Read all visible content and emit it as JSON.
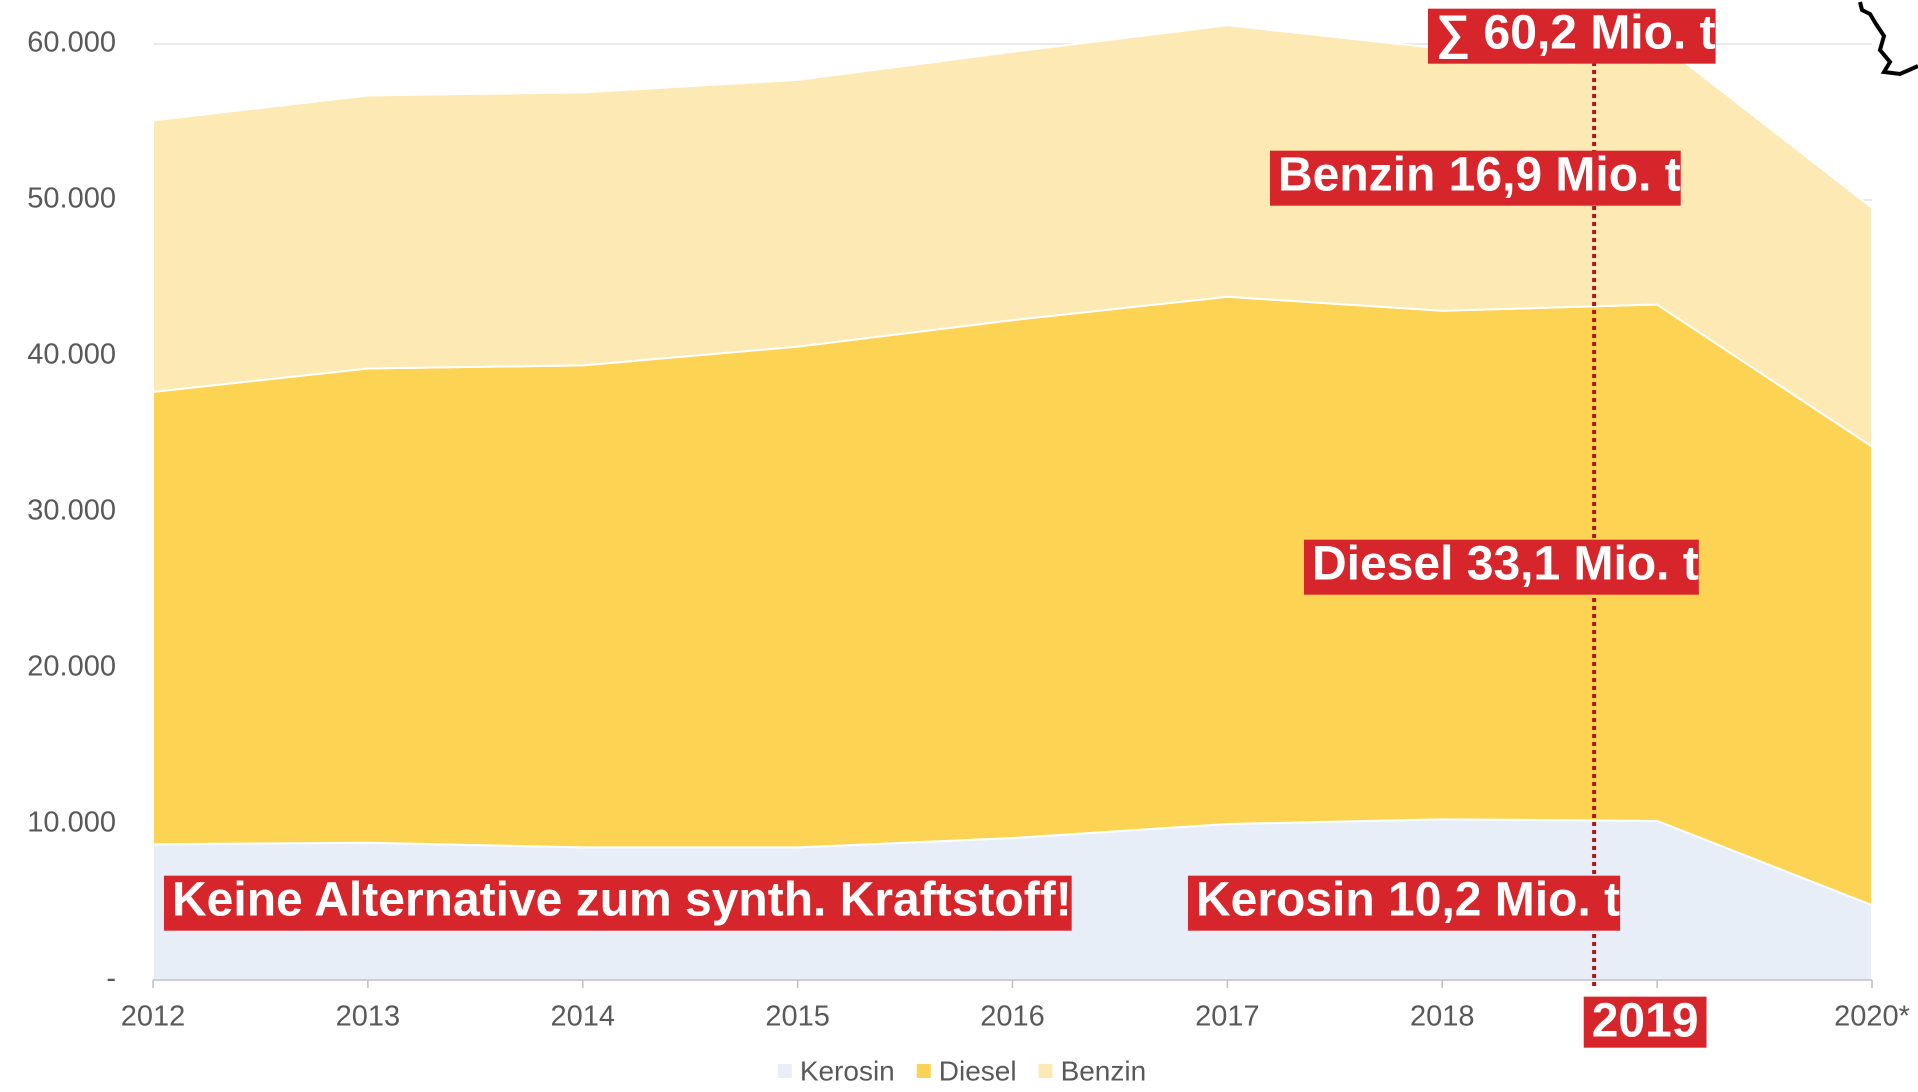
{
  "chart_data": {
    "type": "stacked-area",
    "categories": [
      "2012",
      "2013",
      "2014",
      "2015",
      "2016",
      "2017",
      "2018",
      "2019",
      "2020*"
    ],
    "series": [
      {
        "name": "Kerosin",
        "color": "#e8eef8",
        "values": [
          8700,
          8800,
          8500,
          8500,
          9100,
          10000,
          10300,
          10200,
          4800
        ]
      },
      {
        "name": "Diesel",
        "color": "#fcd353",
        "values": [
          29000,
          30400,
          30900,
          32100,
          33200,
          33800,
          32600,
          33100,
          29400
        ]
      },
      {
        "name": "Benzin",
        "color": "#fde9b3",
        "values": [
          17400,
          17500,
          17500,
          17100,
          17200,
          17400,
          16800,
          16900,
          15300
        ]
      }
    ],
    "ylim": [
      0,
      60000
    ],
    "yticks": [
      {
        "value": 0,
        "label": "-"
      },
      {
        "value": 10000,
        "label": "10.000"
      },
      {
        "value": 20000,
        "label": "20.000"
      },
      {
        "value": 30000,
        "label": "30.000"
      },
      {
        "value": 40000,
        "label": "40.000"
      },
      {
        "value": 50000,
        "label": "50.000"
      },
      {
        "value": 60000,
        "label": "60.000"
      }
    ],
    "grid": true,
    "highlight": "2019",
    "annotations": [
      "∑ 60,2 Mio. t",
      "Benzin 16,9 Mio. t",
      "Diesel 33,1 Mio. t",
      "Keine Alternative zum synth. Kraftstoff!",
      "Kerosin 10,2 Mio. t"
    ],
    "legend": "bottom"
  }
}
